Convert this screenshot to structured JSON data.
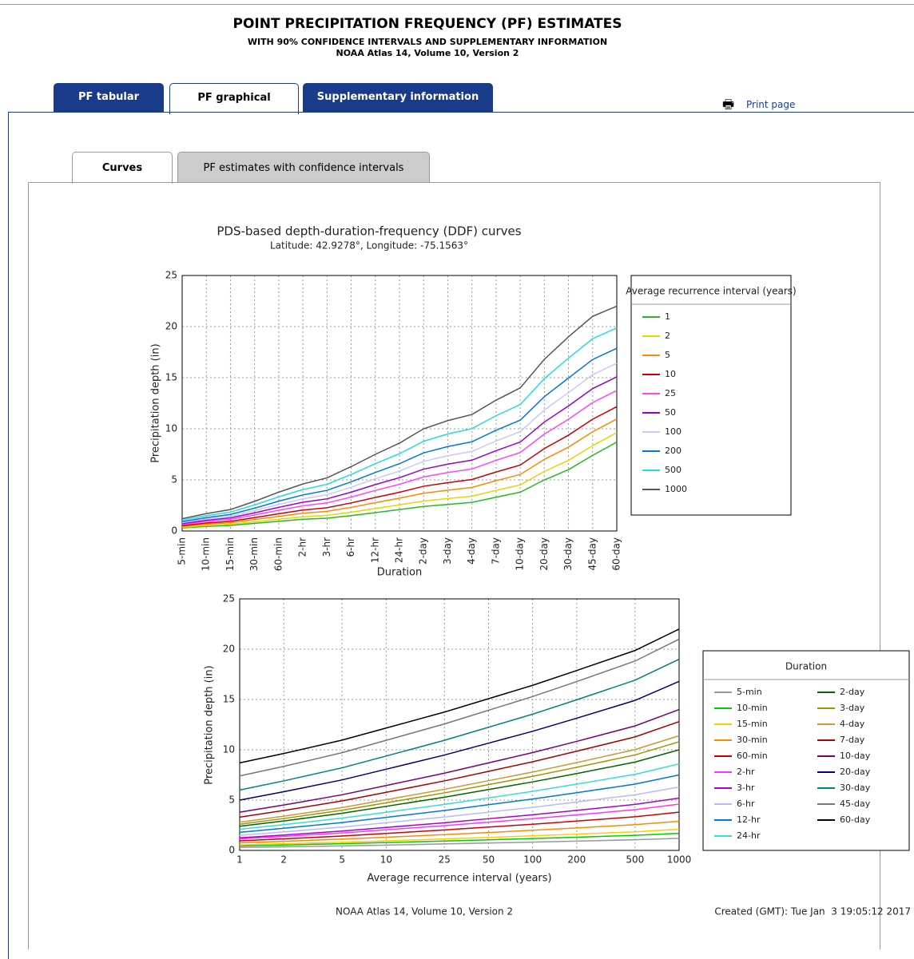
{
  "header": {
    "title": "POINT PRECIPITATION FREQUENCY (PF) ESTIMATES",
    "subtitle": "WITH 90% CONFIDENCE INTERVALS AND SUPPLEMENTARY INFORMATION",
    "version": "NOAA Atlas 14, Volume 10, Version 2"
  },
  "tabs": [
    "PF tabular",
    "PF graphical",
    "Supplementary information"
  ],
  "print": "Print page",
  "subtabs": [
    "Curves",
    "PF estimates with confidence intervals"
  ],
  "chart_data": [
    {
      "type": "line",
      "title": "PDS-based depth-duration-frequency (DDF) curves",
      "subtitle": "Latitude: 42.9278°, Longitude: -75.1563°",
      "x_label": "Duration",
      "y_label": "Precipitation depth (in)",
      "legend_title": "Average recurrence interval (years)",
      "grid": true,
      "categories": [
        "5-min",
        "10-min",
        "15-min",
        "30-min",
        "60-min",
        "2-hr",
        "3-hr",
        "6-hr",
        "12-hr",
        "24-hr",
        "2-day",
        "3-day",
        "4-day",
        "7-day",
        "10-day",
        "20-day",
        "30-day",
        "45-day",
        "60-day"
      ],
      "ylim": [
        0,
        25
      ],
      "yticks": [
        0,
        5,
        10,
        15,
        20,
        25
      ],
      "series": [
        {
          "name": "1",
          "color": "#22bb22",
          "values": [
            0.3,
            0.45,
            0.55,
            0.75,
            0.95,
            1.15,
            1.25,
            1.5,
            1.8,
            2.1,
            2.4,
            2.6,
            2.8,
            3.3,
            3.8,
            5.0,
            6.0,
            7.4,
            8.7
          ]
        },
        {
          "name": "2",
          "color": "#e0d800",
          "values": [
            0.36,
            0.54,
            0.66,
            0.9,
            1.15,
            1.39,
            1.53,
            1.84,
            2.2,
            2.56,
            2.93,
            3.17,
            3.4,
            3.97,
            4.51,
            5.83,
            6.91,
            8.35,
            9.63
          ]
        },
        {
          "name": "5",
          "color": "#ff8800",
          "values": [
            0.45,
            0.66,
            0.81,
            1.12,
            1.43,
            1.74,
            1.92,
            2.32,
            2.77,
            3.21,
            3.69,
            3.99,
            4.26,
            4.92,
            5.53,
            7.01,
            8.21,
            9.71,
            10.96
          ]
        },
        {
          "name": "10",
          "color": "#cc0000",
          "values": [
            0.53,
            0.78,
            0.95,
            1.31,
            1.69,
            2.05,
            2.28,
            2.75,
            3.28,
            3.79,
            4.38,
            4.73,
            5.04,
            5.77,
            6.45,
            8.07,
            9.38,
            10.94,
            12.16
          ]
        },
        {
          "name": "25",
          "color": "#ff44ff",
          "values": [
            0.64,
            0.93,
            1.14,
            1.57,
            2.03,
            2.46,
            2.75,
            3.32,
            3.97,
            4.57,
            5.29,
            5.72,
            6.07,
            6.91,
            7.68,
            9.48,
            10.94,
            12.57,
            13.75
          ]
        },
        {
          "name": "50",
          "color": "#9900cc",
          "values": [
            0.73,
            1.05,
            1.29,
            1.78,
            2.32,
            2.81,
            3.15,
            3.8,
            4.54,
            5.22,
            6.05,
            6.54,
            6.93,
            7.86,
            8.7,
            10.66,
            12.24,
            13.93,
            15.08
          ]
        },
        {
          "name": "100",
          "color": "#c8c8ff",
          "values": [
            0.82,
            1.18,
            1.45,
            2.0,
            2.6,
            3.15,
            3.54,
            4.28,
            5.11,
            5.87,
            6.81,
            7.36,
            7.79,
            8.81,
            9.72,
            11.84,
            13.54,
            15.29,
            16.41
          ]
        },
        {
          "name": "200",
          "color": "#0077dd",
          "values": [
            0.92,
            1.31,
            1.62,
            2.23,
            2.92,
            3.53,
            3.98,
            4.81,
            5.73,
            6.59,
            7.64,
            8.26,
            8.73,
            9.86,
            10.84,
            13.14,
            14.97,
            16.78,
            17.88
          ]
        },
        {
          "name": "500",
          "color": "#22dddd",
          "values": [
            1.06,
            1.5,
            1.85,
            2.56,
            3.34,
            4.05,
            4.57,
            5.53,
            6.59,
            7.56,
            8.78,
            9.49,
            10.02,
            11.28,
            12.37,
            14.91,
            16.92,
            18.82,
            19.87
          ]
        },
        {
          "name": "1000",
          "color": "#555555",
          "values": [
            1.2,
            1.7,
            2.1,
            2.9,
            3.8,
            4.6,
            5.2,
            6.3,
            7.5,
            8.6,
            10.0,
            10.8,
            11.4,
            12.8,
            14.0,
            16.8,
            19.0,
            21.0,
            22.0
          ]
        }
      ]
    },
    {
      "type": "line",
      "x_label": "Average recurrence interval (years)",
      "y_label": "Precipitation depth (in)",
      "legend_title": "Duration",
      "grid": true,
      "log_x": true,
      "x": [
        1,
        2,
        5,
        10,
        25,
        50,
        100,
        200,
        500,
        1000
      ],
      "xlim": [
        1,
        1000
      ],
      "xticks": [
        1,
        2,
        5,
        10,
        25,
        50,
        100,
        200,
        500,
        1000
      ],
      "ylim": [
        0,
        25
      ],
      "yticks": [
        0,
        5,
        10,
        15,
        20,
        25
      ],
      "series": [
        {
          "name": "5-min",
          "color": "#999999",
          "values": [
            0.3,
            0.36,
            0.45,
            0.53,
            0.64,
            0.73,
            0.82,
            0.92,
            1.06,
            1.2
          ]
        },
        {
          "name": "10-min",
          "color": "#00cc00",
          "values": [
            0.45,
            0.54,
            0.66,
            0.78,
            0.93,
            1.05,
            1.18,
            1.31,
            1.5,
            1.7
          ]
        },
        {
          "name": "15-min",
          "color": "#ffcc00",
          "values": [
            0.55,
            0.66,
            0.81,
            0.95,
            1.14,
            1.29,
            1.45,
            1.62,
            1.85,
            2.1
          ]
        },
        {
          "name": "30-min",
          "color": "#ff8800",
          "values": [
            0.75,
            0.9,
            1.12,
            1.31,
            1.57,
            1.78,
            2.0,
            2.23,
            2.56,
            2.9
          ]
        },
        {
          "name": "60-min",
          "color": "#cc0000",
          "values": [
            0.95,
            1.15,
            1.43,
            1.69,
            2.03,
            2.32,
            2.6,
            2.92,
            3.34,
            3.8
          ]
        },
        {
          "name": "2-hr",
          "color": "#ff33ff",
          "values": [
            1.15,
            1.39,
            1.74,
            2.05,
            2.46,
            2.81,
            3.15,
            3.53,
            4.05,
            4.6
          ]
        },
        {
          "name": "3-hr",
          "color": "#aa00cc",
          "values": [
            1.25,
            1.53,
            1.92,
            2.28,
            2.75,
            3.15,
            3.54,
            3.98,
            4.57,
            5.2
          ]
        },
        {
          "name": "6-hr",
          "color": "#b8b8ff",
          "values": [
            1.5,
            1.84,
            2.32,
            2.75,
            3.32,
            3.8,
            4.28,
            4.81,
            5.53,
            6.3
          ]
        },
        {
          "name": "12-hr",
          "color": "#0077dd",
          "values": [
            1.8,
            2.2,
            2.77,
            3.28,
            3.97,
            4.54,
            5.11,
            5.73,
            6.59,
            7.5
          ]
        },
        {
          "name": "24-hr",
          "color": "#33dddd",
          "values": [
            2.1,
            2.56,
            3.21,
            3.79,
            4.57,
            5.22,
            5.87,
            6.59,
            7.56,
            8.6
          ]
        },
        {
          "name": "2-day",
          "color": "#006600",
          "values": [
            2.4,
            2.93,
            3.69,
            4.38,
            5.29,
            6.05,
            6.81,
            7.64,
            8.78,
            10.0
          ]
        },
        {
          "name": "3-day",
          "color": "#999900",
          "values": [
            2.6,
            3.17,
            3.99,
            4.73,
            5.72,
            6.54,
            7.36,
            8.26,
            9.49,
            10.8
          ]
        },
        {
          "name": "4-day",
          "color": "#cc9933",
          "values": [
            2.8,
            3.4,
            4.26,
            5.04,
            6.07,
            6.93,
            7.79,
            8.73,
            10.02,
            11.4
          ]
        },
        {
          "name": "7-day",
          "color": "#aa0000",
          "values": [
            3.3,
            3.97,
            4.92,
            5.77,
            6.91,
            7.86,
            8.81,
            9.86,
            11.28,
            12.8
          ]
        },
        {
          "name": "10-day",
          "color": "#770077",
          "values": [
            3.8,
            4.51,
            5.53,
            6.45,
            7.68,
            8.7,
            9.72,
            10.84,
            12.37,
            14.0
          ]
        },
        {
          "name": "20-day",
          "color": "#000077",
          "values": [
            5.0,
            5.83,
            7.01,
            8.07,
            9.48,
            10.66,
            11.84,
            13.14,
            14.91,
            16.8
          ]
        },
        {
          "name": "30-day",
          "color": "#008080",
          "values": [
            6.0,
            6.91,
            8.21,
            9.38,
            10.94,
            12.24,
            13.54,
            14.97,
            16.92,
            19.0
          ]
        },
        {
          "name": "45-day",
          "color": "#777777",
          "values": [
            7.4,
            8.35,
            9.71,
            10.94,
            12.57,
            13.93,
            15.29,
            16.78,
            18.82,
            21.0
          ]
        },
        {
          "name": "60-day",
          "color": "#000000",
          "values": [
            8.7,
            9.63,
            10.96,
            12.16,
            13.75,
            15.08,
            16.41,
            17.88,
            19.87,
            22.0
          ]
        }
      ]
    }
  ],
  "footer": {
    "left": "NOAA Atlas 14, Volume 10, Version 2",
    "right": "Created (GMT): Tue Jan  3 19:05:12 2017"
  }
}
